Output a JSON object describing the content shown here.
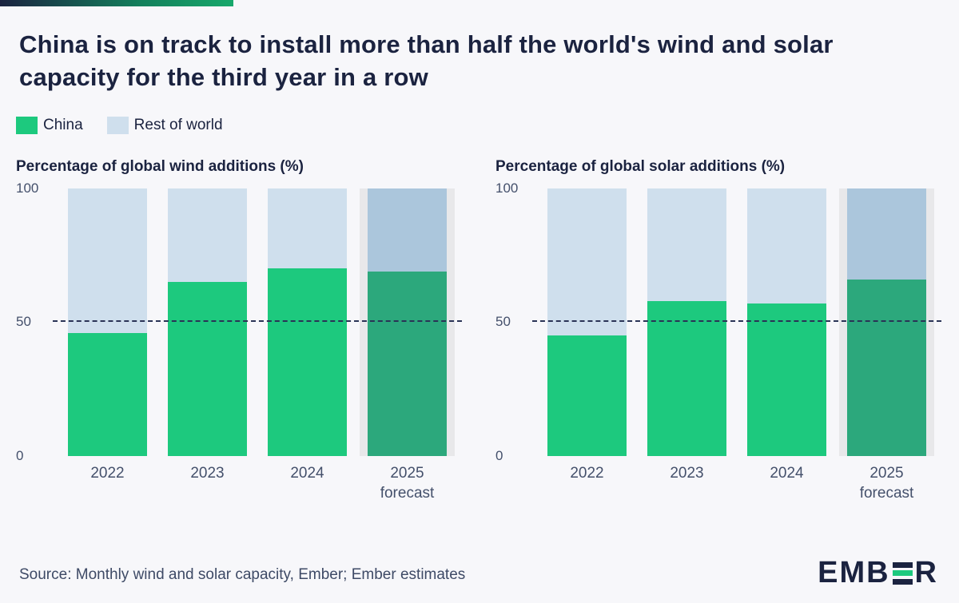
{
  "header": {
    "title": "China is on track to install more than half the world's wind and solar capacity for the third year in a row"
  },
  "legend": {
    "items": [
      {
        "label": "China",
        "color": "#1DC97E"
      },
      {
        "label": "Rest of world",
        "color": "#CFDFED"
      }
    ]
  },
  "colors": {
    "china": "#1DC97E",
    "china_forecast": "#2CA87C",
    "rest_of_world": "#CFDFED",
    "rest_of_world_forecast": "#ABC6DC",
    "forecast_band": "#E8E8EA",
    "title_navy": "#1B2340",
    "axis_text": "#44506B",
    "background": "#F7F7FA",
    "reference_line": "#2A3356"
  },
  "chart_data": [
    {
      "type": "bar",
      "stacked": true,
      "title": "Percentage of global wind additions (%)",
      "categories": [
        "2022",
        "2023",
        "2024",
        "2025\nforecast"
      ],
      "series": [
        {
          "name": "China",
          "values": [
            46,
            65,
            70,
            69
          ]
        },
        {
          "name": "Rest of world",
          "values": [
            54,
            35,
            30,
            31
          ]
        }
      ],
      "ylim": [
        0,
        100
      ],
      "yticks": [
        0,
        50,
        100
      ],
      "reference_line": 50,
      "forecast_index": 3,
      "legend_position": "top",
      "grid": false
    },
    {
      "type": "bar",
      "stacked": true,
      "title": "Percentage of global solar additions (%)",
      "categories": [
        "2022",
        "2023",
        "2024",
        "2025\nforecast"
      ],
      "series": [
        {
          "name": "China",
          "values": [
            45,
            58,
            57,
            66
          ]
        },
        {
          "name": "Rest of world",
          "values": [
            55,
            42,
            43,
            34
          ]
        }
      ],
      "ylim": [
        0,
        100
      ],
      "yticks": [
        0,
        50,
        100
      ],
      "reference_line": 50,
      "forecast_index": 3,
      "legend_position": "top",
      "grid": false
    }
  ],
  "footer": {
    "source": "Source: Monthly wind and solar capacity, Ember; Ember estimates",
    "logo": {
      "prefix": "EMB",
      "stylized_letter": "E",
      "suffix": "R"
    }
  }
}
